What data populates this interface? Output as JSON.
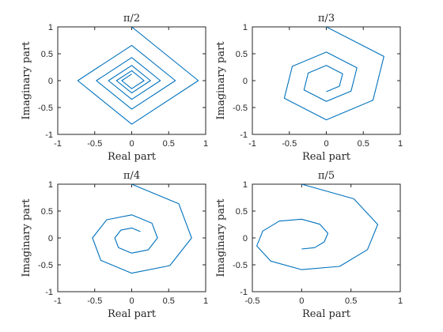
{
  "chart_data": [
    {
      "type": "line",
      "title": "π/2",
      "xlabel": "Real part",
      "ylabel": "Imaginary part",
      "xlim": [
        -1,
        1
      ],
      "ylim": [
        -1,
        1
      ],
      "xticks": [
        -1,
        -0.5,
        0,
        0.5,
        1
      ],
      "yticks": [
        -1,
        -0.5,
        0,
        0.5,
        1
      ],
      "xtick_labels": [
        "-1",
        "-0.5",
        "0",
        "0.5",
        "1"
      ],
      "ytick_labels": [
        "-1",
        "-0.5",
        "0",
        "0.5",
        "1"
      ],
      "color": "#0072bd",
      "grid": false,
      "series": [
        {
          "x": [
            0.0,
            0.9,
            0.0,
            -0.729,
            0.0,
            0.59,
            0.0,
            -0.478,
            0.0,
            0.387,
            0.0,
            -0.314,
            0.0,
            0.254,
            0.0,
            -0.206,
            0.0,
            0.167,
            0.0,
            -0.135,
            0.0
          ],
          "y": [
            1.0,
            0.0,
            -0.81,
            0.0,
            0.656,
            0.0,
            -0.531,
            0.0,
            0.43,
            0.0,
            -0.349,
            0.0,
            0.282,
            0.0,
            -0.229,
            0.0,
            0.185,
            0.0,
            -0.15,
            0.0,
            0.122
          ]
        }
      ]
    },
    {
      "type": "line",
      "title": "π/3",
      "xlabel": "Real part",
      "ylabel": "Imaginary part",
      "xlim": [
        -1,
        1
      ],
      "ylim": [
        -1,
        1
      ],
      "xticks": [
        -1,
        -0.5,
        0,
        0.5,
        1
      ],
      "yticks": [
        -1,
        -0.5,
        0,
        0.5,
        1
      ],
      "xtick_labels": [
        "-1",
        "-0.5",
        "0",
        "0.5",
        "1"
      ],
      "ytick_labels": [
        "-1",
        "-0.5",
        "0",
        "0.5",
        "1"
      ],
      "color": "#0072bd",
      "grid": false,
      "series": [
        {
          "x": [
            0.0,
            0.779,
            0.631,
            0.0,
            -0.568,
            -0.46,
            0.0,
            0.414,
            0.335,
            0.0,
            -0.302,
            -0.245,
            0.0,
            0.22,
            0.178,
            0.0
          ],
          "y": [
            1.0,
            0.45,
            -0.365,
            -0.729,
            -0.328,
            0.266,
            0.531,
            0.239,
            -0.194,
            -0.387,
            -0.174,
            0.141,
            0.282,
            0.127,
            -0.103,
            -0.206
          ]
        }
      ]
    },
    {
      "type": "line",
      "title": "π/4",
      "xlabel": "Real part",
      "ylabel": "Imaginary part",
      "xlim": [
        -1,
        1
      ],
      "ylim": [
        -1,
        1
      ],
      "xticks": [
        -1,
        -0.5,
        0,
        0.5,
        1
      ],
      "yticks": [
        -1,
        -0.5,
        0,
        0.5,
        1
      ],
      "xtick_labels": [
        "-1",
        "-0.5",
        "0",
        "0.5",
        "1"
      ],
      "ytick_labels": [
        "-1",
        "-0.5",
        "0",
        "0.5",
        "1"
      ],
      "color": "#0072bd",
      "grid": false,
      "series": [
        {
          "x": [
            0.0,
            0.636,
            0.81,
            0.515,
            0.0,
            -0.417,
            -0.531,
            -0.338,
            0.0,
            0.274,
            0.349,
            0.222,
            0.0,
            -0.18,
            -0.229,
            -0.146,
            0.0,
            0.118
          ],
          "y": [
            1.0,
            0.636,
            0.0,
            -0.515,
            -0.656,
            -0.417,
            0.0,
            0.338,
            0.43,
            0.274,
            0.0,
            -0.222,
            -0.282,
            -0.18,
            0.0,
            0.146,
            0.185,
            0.118
          ]
        }
      ]
    },
    {
      "type": "line",
      "title": "π/5",
      "xlabel": "Real part",
      "ylabel": "Imaginary part",
      "xlim": [
        -0.5,
        1
      ],
      "ylim": [
        -1,
        1
      ],
      "xticks": [
        -0.5,
        0,
        0.5,
        1
      ],
      "yticks": [
        -1,
        -0.5,
        0,
        0.5,
        1
      ],
      "xtick_labels": [
        "-0.5",
        "0",
        "0.5",
        "1"
      ],
      "ytick_labels": [
        "-1",
        "-0.5",
        "0",
        "0.5",
        "1"
      ],
      "color": "#0072bd",
      "grid": false,
      "series": [
        {
          "x": [
            0.0,
            0.529,
            0.771,
            0.667,
            0.385,
            0.0,
            -0.314,
            -0.455,
            -0.394,
            -0.227,
            0.0,
            0.185,
            0.266,
            0.229,
            0.131,
            0.0
          ],
          "y": [
            1.0,
            0.728,
            0.25,
            -0.217,
            -0.53,
            -0.59,
            -0.431,
            -0.148,
            0.128,
            0.313,
            0.349,
            0.255,
            0.087,
            -0.074,
            -0.181,
            -0.206
          ]
        }
      ]
    }
  ]
}
